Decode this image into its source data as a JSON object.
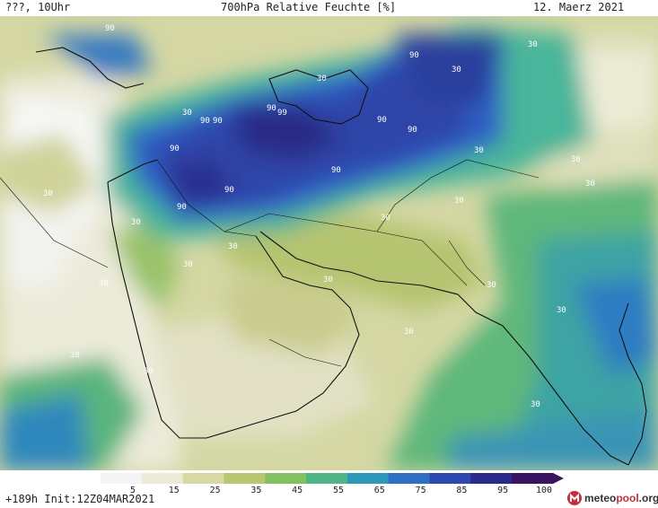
{
  "header": {
    "left": "???, 10Uhr",
    "title": "700hPa Relative Feuchte [%]",
    "date": "12. Maerz 2021"
  },
  "map": {
    "contour_labels": [
      "90",
      "90",
      "90",
      "90",
      "90",
      "90",
      "90",
      "90",
      "90",
      "90",
      "90",
      "99",
      "30",
      "30",
      "30",
      "30",
      "30",
      "30",
      "30",
      "30",
      "30",
      "30",
      "30",
      "30",
      "30",
      "30",
      "30",
      "30",
      "30",
      "30",
      "30",
      "30",
      "30"
    ]
  },
  "colorbar": {
    "ticks": [
      "5",
      "15",
      "25",
      "35",
      "45",
      "55",
      "65",
      "75",
      "85",
      "95",
      "100"
    ],
    "colors": [
      "#f4f4f4",
      "#ecebd8",
      "#d8d9a2",
      "#b9c86e",
      "#82c062",
      "#4fb585",
      "#2e98b8",
      "#2e6fc4",
      "#2d49b0",
      "#2a2a8a",
      "#3a1460"
    ]
  },
  "footer": {
    "run": "+189h  Init:12Z04MAR2021"
  },
  "logo": {
    "brand_main": "meteo",
    "brand_accent": "pool",
    "brand_tld": ".org"
  }
}
